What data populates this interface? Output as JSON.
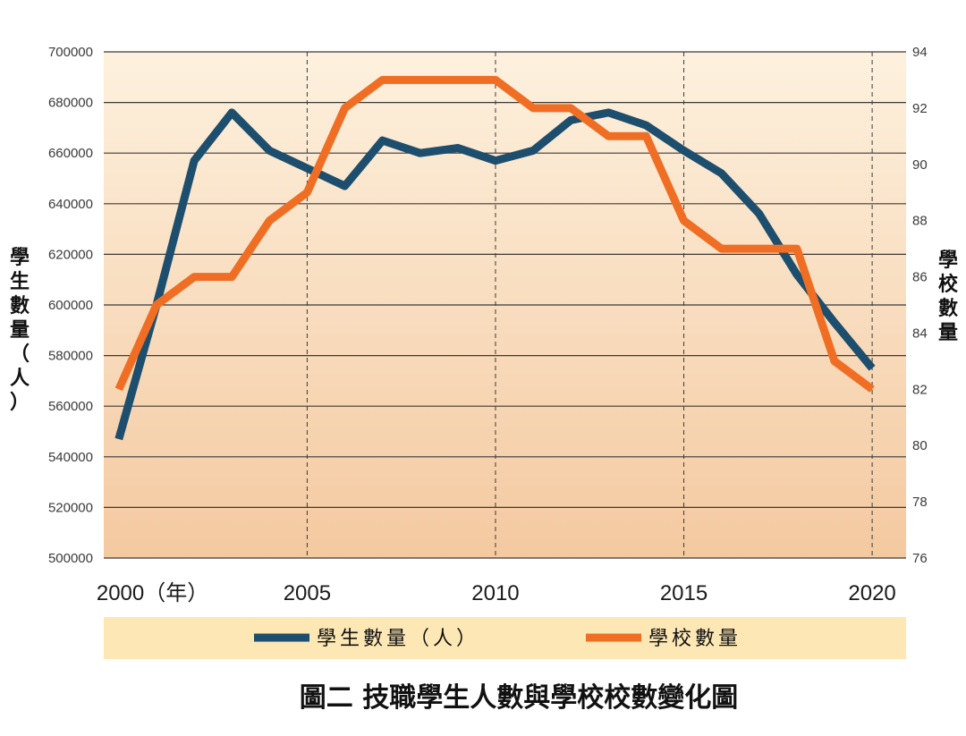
{
  "chart_data": {
    "type": "line",
    "title": "圖二 技職學生人數與學校校數變化圖",
    "x": [
      2000,
      2001,
      2002,
      2003,
      2004,
      2005,
      2006,
      2007,
      2008,
      2009,
      2010,
      2011,
      2012,
      2013,
      2014,
      2015,
      2016,
      2017,
      2018,
      2019,
      2020
    ],
    "xticks": [
      {
        "value": 2000,
        "label": "2000（年）"
      },
      {
        "value": 2005,
        "label": "2005"
      },
      {
        "value": 2010,
        "label": "2010"
      },
      {
        "value": 2015,
        "label": "2015"
      },
      {
        "value": 2020,
        "label": "2020"
      }
    ],
    "xlim": [
      1999.6,
      2020.9
    ],
    "y_left": {
      "label": "學生數量（人）",
      "label_chars": [
        "學",
        "生",
        "數",
        "量",
        "（",
        "人",
        "）"
      ],
      "ticks": [
        "700000",
        "680000",
        "660000",
        "640000",
        "620000",
        "600000",
        "580000",
        "560000",
        "540000",
        "520000",
        "500000"
      ],
      "ylim": [
        500000,
        700000
      ]
    },
    "y_right": {
      "label": "學校數量",
      "label_chars": [
        "學",
        "校",
        "數",
        "量"
      ],
      "ticks": [
        "94",
        "92",
        "90",
        "88",
        "86",
        "84",
        "82",
        "80",
        "78",
        "76"
      ],
      "ylim": [
        76,
        94
      ]
    },
    "series": [
      {
        "name": "學生數量（人）",
        "axis": "left",
        "color": "#1d4e6d",
        "values": [
          547000,
          600000,
          657000,
          676000,
          661000,
          654000,
          647000,
          665000,
          660000,
          662000,
          657000,
          661000,
          673000,
          676000,
          671000,
          661000,
          652000,
          636000,
          612000,
          593000,
          575000
        ]
      },
      {
        "name": "學校數量",
        "axis": "right",
        "color": "#f06e24",
        "values": [
          82,
          85,
          86,
          86,
          88,
          89,
          92,
          93,
          93,
          93,
          93,
          92,
          92,
          91,
          91,
          88,
          87,
          87,
          87,
          83,
          82
        ]
      }
    ],
    "grid": {
      "horizontal": true,
      "vertical_dashed_at": [
        2005,
        2010,
        2015,
        2020
      ]
    },
    "legend": {
      "placement": "bottom",
      "items": [
        "學生數量（人）",
        "學校數量"
      ]
    }
  },
  "colors": {
    "plot_top": "#fdf1de",
    "plot_bottom": "#f4c9a0",
    "legend_band": "#fde7b4",
    "grid": "#3a3a3a"
  }
}
